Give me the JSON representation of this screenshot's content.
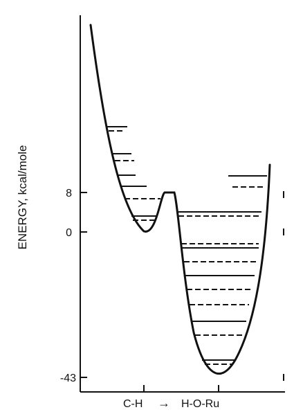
{
  "y_axis": {
    "label": "ENERGY, kcal/mole",
    "ticks": [
      {
        "label": "8",
        "value": 8
      },
      {
        "label": "0",
        "value": 0
      },
      {
        "label": "-43",
        "value": -43
      }
    ]
  },
  "x_axis": {
    "label_left": "C-H",
    "label_right": "H-O-Ru",
    "arrow": "→"
  },
  "colors": {
    "ink": "#111111",
    "background": "#ffffff"
  }
}
